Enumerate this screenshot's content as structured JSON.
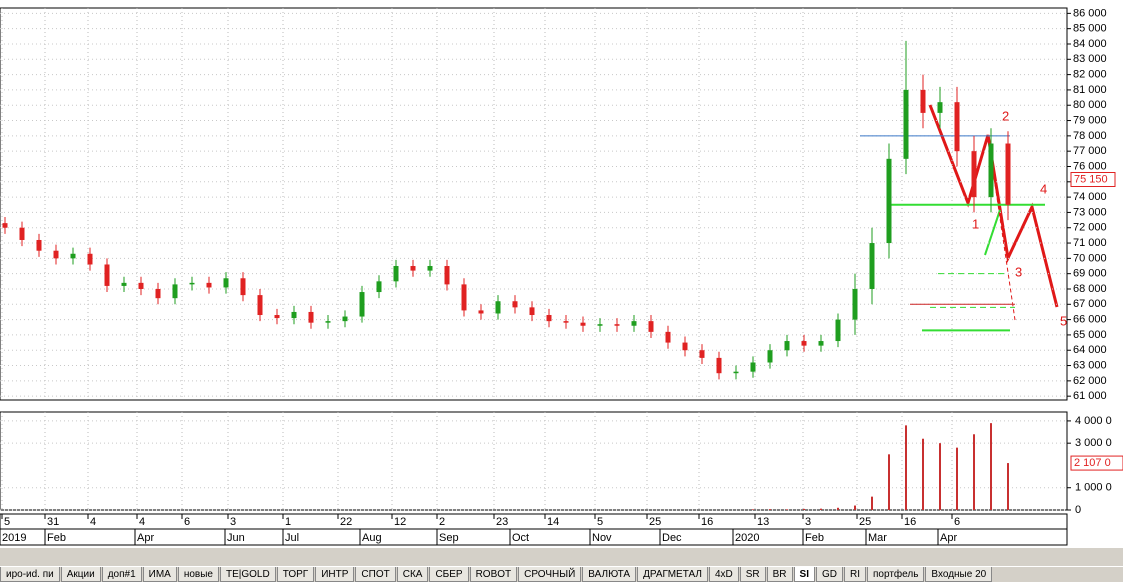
{
  "chart_data": {
    "type": "candlestick",
    "open": [
      72300,
      72000,
      71200,
      70500,
      70000,
      70300,
      69600,
      68200,
      68400,
      68000,
      67400,
      68300,
      68400,
      68100,
      68700,
      67600,
      66300,
      66100,
      66500,
      65800,
      65900,
      66200,
      67800,
      68500,
      69500,
      69200,
      69500,
      68300,
      66600,
      66400,
      67200,
      66800,
      66300,
      65900,
      65800,
      65600,
      65700,
      65600,
      65900,
      65200,
      64500,
      64000,
      63500,
      62500,
      62600,
      63200,
      64000,
      64600,
      64300,
      64600,
      66000,
      68000,
      71000,
      76500,
      81000,
      79500,
      80200,
      77000,
      74000,
      77500
    ],
    "high": [
      72700,
      72400,
      71600,
      70900,
      70700,
      70700,
      70000,
      68800,
      68800,
      68400,
      68700,
      68800,
      68800,
      69100,
      69100,
      68000,
      66700,
      66900,
      66900,
      66300,
      66600,
      68200,
      68900,
      69900,
      69900,
      69900,
      69900,
      68700,
      67000,
      67600,
      67600,
      67200,
      66700,
      66300,
      66200,
      66100,
      66100,
      66300,
      66300,
      65600,
      64900,
      64400,
      63900,
      63000,
      63600,
      64400,
      65000,
      65000,
      65000,
      66400,
      69000,
      72000,
      77500,
      84200,
      82000,
      81200,
      81200,
      78000,
      78500,
      78300
    ],
    "low": [
      71600,
      70800,
      70100,
      69600,
      69600,
      69200,
      67800,
      67800,
      67600,
      67000,
      67000,
      67900,
      67700,
      67700,
      67200,
      65900,
      65700,
      65700,
      65400,
      65400,
      65500,
      65800,
      67400,
      68100,
      68800,
      68800,
      67900,
      66200,
      66000,
      66000,
      66400,
      65900,
      65500,
      65400,
      65200,
      65200,
      65200,
      65200,
      64800,
      64100,
      63600,
      63100,
      62100,
      62100,
      62200,
      62800,
      63600,
      63900,
      63900,
      64200,
      65000,
      67000,
      70000,
      75500,
      78500,
      78500,
      76000,
      73000,
      73000,
      72500
    ],
    "close": [
      72000,
      71200,
      70500,
      70000,
      70300,
      69600,
      68200,
      68400,
      68000,
      67400,
      68300,
      68400,
      68100,
      68700,
      67600,
      66300,
      66100,
      66500,
      65800,
      65900,
      66200,
      67800,
      68500,
      69500,
      69200,
      69500,
      68300,
      66600,
      66400,
      67200,
      66800,
      66300,
      65900,
      65800,
      65600,
      65700,
      65600,
      65900,
      65200,
      64500,
      64000,
      63500,
      62500,
      62600,
      63200,
      64000,
      64600,
      64300,
      64600,
      66000,
      68000,
      71000,
      76500,
      81000,
      79500,
      80200,
      77000,
      74000,
      77500,
      73500
    ],
    "colors": {
      "up": "#1f9e1f",
      "down": "#e02222"
    },
    "ylim": [
      60750,
      86350
    ],
    "yticks": [
      {
        "value": 61000,
        "label": "61 000"
      },
      {
        "value": 62000,
        "label": "62 000"
      },
      {
        "value": 63000,
        "label": "63 000"
      },
      {
        "value": 64000,
        "label": "64 000"
      },
      {
        "value": 65000,
        "label": "65 000"
      },
      {
        "value": 66000,
        "label": "66 000"
      },
      {
        "value": 67000,
        "label": "67 000"
      },
      {
        "value": 68000,
        "label": "68 000"
      },
      {
        "value": 69000,
        "label": "69 000"
      },
      {
        "value": 70000,
        "label": "70 000"
      },
      {
        "value": 71000,
        "label": "71 000"
      },
      {
        "value": 72000,
        "label": "72 000"
      },
      {
        "value": 73000,
        "label": "73 000"
      },
      {
        "value": 74000,
        "label": "74 000"
      },
      {
        "value": 75000,
        "label": "75 000"
      },
      {
        "value": 76000,
        "label": "76 000"
      },
      {
        "value": 77000,
        "label": "77 000"
      },
      {
        "value": 78000,
        "label": "78 000"
      },
      {
        "value": 79000,
        "label": "79 000"
      },
      {
        "value": 80000,
        "label": "80 000"
      },
      {
        "value": 81000,
        "label": "81 000"
      },
      {
        "value": 82000,
        "label": "82 000"
      },
      {
        "value": 83000,
        "label": "83 000"
      },
      {
        "value": 84000,
        "label": "84 000"
      },
      {
        "value": 85000,
        "label": "85 000"
      },
      {
        "value": 86000,
        "label": "86 000"
      }
    ],
    "last_price": {
      "value": 75150,
      "label": "75 150"
    },
    "levels": [
      {
        "value": 78000,
        "color": "#3a78c8"
      },
      {
        "value": 73500,
        "color": "#33dd33"
      },
      {
        "value": 67000,
        "color": "#cc2222"
      },
      {
        "value": 66800,
        "color": "#33dd33"
      },
      {
        "value": 65300,
        "color": "#33dd33"
      },
      {
        "value": 69000,
        "color": "#33dd33"
      }
    ],
    "wave_labels": [
      "1",
      "2",
      "3",
      "4",
      "5"
    ],
    "volume": {
      "values": [
        0,
        0,
        0,
        0,
        0,
        0,
        0,
        0,
        0,
        0,
        0,
        0,
        0,
        0,
        0,
        0,
        0,
        0,
        0,
        0,
        0,
        0,
        0,
        0,
        0,
        0,
        0,
        0,
        0,
        0,
        0,
        0,
        0,
        0,
        0,
        0,
        0,
        0,
        0,
        0,
        0,
        0,
        0,
        0,
        30000,
        40000,
        30000,
        50000,
        60000,
        100000,
        200000,
        600000,
        2500000,
        3800000,
        3200000,
        3000000,
        2800000,
        3400000,
        3900000,
        2107000
      ],
      "color": "#c83030",
      "ylim": [
        0,
        4400000
      ],
      "yticks": [
        {
          "value": 0,
          "label": "0"
        },
        {
          "value": 1000000,
          "label": "1 000 0"
        },
        {
          "value": 3000000,
          "label": "3 000 0"
        },
        {
          "value": 4000000,
          "label": "4 000 0"
        }
      ],
      "last": {
        "value": 2107000,
        "label": "2 107 0"
      }
    },
    "time_labels": [
      "5",
      "31",
      "4",
      "4",
      "6",
      "3",
      "1",
      "22",
      "12",
      "2",
      "23",
      "14",
      "5",
      "25",
      "16",
      "13",
      "3",
      "25",
      "16",
      "6"
    ],
    "month_labels": [
      "2019",
      "Feb",
      "Apr",
      "Jun",
      "Jul",
      "Aug",
      "Sep",
      "Oct",
      "Nov",
      "Dec",
      "2020",
      "Feb",
      "Mar",
      "Apr"
    ],
    "tabs": [
      "иро-иd. пи",
      "Акции",
      "доп#1",
      "ИМА",
      "новые",
      "ТЕ|GOLD",
      "ТОРГ",
      "ИНТР",
      "СПОТ",
      "СКА",
      "СБЕР",
      "ROBOT",
      "СРОЧНЫЙ",
      "ВАЛЮТА",
      "ДРАГМЕТАЛ",
      "4xD",
      "SR",
      "BR",
      "SI",
      "GD",
      "RI",
      "портфель",
      "Входные 20"
    ],
    "active_tab": 18
  }
}
